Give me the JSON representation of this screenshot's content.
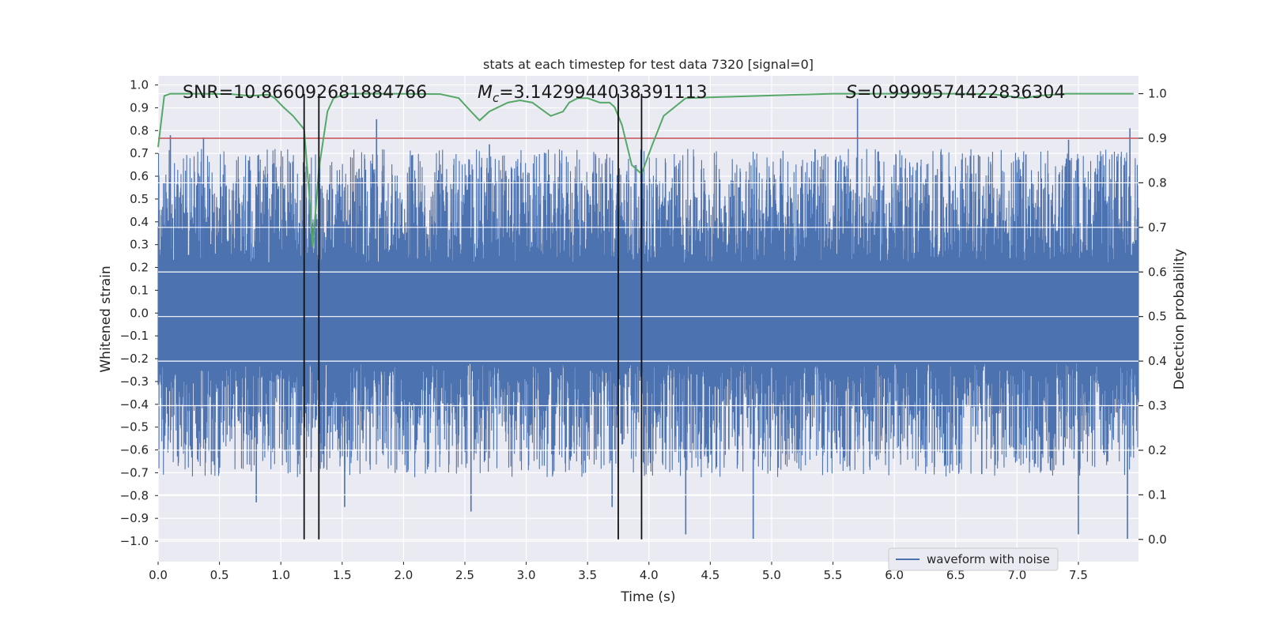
{
  "chart_data": {
    "type": "line",
    "title": "stats at each timestep for test data 7320 [signal=0]",
    "xlabel": "Time (s)",
    "ylabel": "Whitened strain",
    "y2label": "Detection probability",
    "xlim": [
      0.0,
      7.99
    ],
    "ylim": [
      -1.09,
      1.04
    ],
    "y2lim": [
      -0.05,
      1.04
    ],
    "xticks": [
      "0.0",
      "0.5",
      "1.0",
      "1.5",
      "2.0",
      "2.5",
      "3.0",
      "3.5",
      "4.0",
      "4.5",
      "5.0",
      "5.5",
      "6.0",
      "6.5",
      "7.0",
      "7.5"
    ],
    "yticks": [
      "1.0",
      "0.9",
      "0.8",
      "0.7",
      "0.6",
      "0.5",
      "0.4",
      "0.3",
      "0.2",
      "0.1",
      "0.0",
      "−0.1",
      "−0.2",
      "−0.3",
      "−0.4",
      "−0.5",
      "−0.6",
      "−0.7",
      "−0.8",
      "−0.9",
      "−1.0"
    ],
    "y2ticks": [
      "1.0",
      "0.9",
      "0.8",
      "0.7",
      "0.6",
      "0.5",
      "0.4",
      "0.3",
      "0.2",
      "0.1",
      "0.0"
    ],
    "annotations": {
      "snr": "SNR=10.866092681884766",
      "mc_symbol": "M",
      "mc_sub": "c",
      "mc_value": "=3.1429944038391113",
      "s_symbol": "S",
      "s_value": "=0.9999574422836304"
    },
    "legend": {
      "label": "waveform with noise",
      "position": "lower-right"
    },
    "threshold": {
      "value": 0.9,
      "axis": "detection probability",
      "color": "#c44e52"
    },
    "vertical_lines": [
      1.19,
      1.31,
      3.75,
      3.94
    ],
    "waveform": {
      "name": "waveform with noise",
      "color": "#4c72b0",
      "duration_s": 7.99,
      "typical_upper_envelope": 0.5,
      "typical_lower_envelope": -0.5,
      "peaks": [
        {
          "t": 0.1,
          "v": 0.78
        },
        {
          "t": 0.37,
          "v": 0.77
        },
        {
          "t": 1.78,
          "v": 0.85
        },
        {
          "t": 2.7,
          "v": 0.74
        },
        {
          "t": 5.7,
          "v": 0.94
        },
        {
          "t": 7.42,
          "v": 0.76
        },
        {
          "t": 7.92,
          "v": 0.81
        }
      ],
      "troughs": [
        {
          "t": 0.8,
          "v": -0.83
        },
        {
          "t": 1.52,
          "v": -0.85
        },
        {
          "t": 2.55,
          "v": -0.87
        },
        {
          "t": 3.7,
          "v": -0.85
        },
        {
          "t": 4.3,
          "v": -0.97
        },
        {
          "t": 4.85,
          "v": -0.99
        },
        {
          "t": 7.5,
          "v": -0.97
        },
        {
          "t": 7.9,
          "v": -0.99
        }
      ]
    },
    "series": [
      {
        "name": "detection probability",
        "color": "#55a868",
        "axis": "right",
        "x": [
          0.0,
          0.05,
          0.1,
          0.3,
          0.6,
          0.75,
          0.9,
          0.95,
          1.02,
          1.1,
          1.19,
          1.23,
          1.26,
          1.31,
          1.38,
          1.43,
          1.55,
          1.9,
          2.3,
          2.45,
          2.55,
          2.62,
          2.7,
          2.85,
          2.95,
          3.05,
          3.15,
          3.2,
          3.3,
          3.35,
          3.42,
          3.5,
          3.6,
          3.68,
          3.72,
          3.78,
          3.86,
          3.94,
          4.02,
          4.12,
          4.3,
          5.5,
          6.5,
          6.8,
          7.05,
          7.2,
          7.4,
          7.95
        ],
        "y": [
          0.88,
          0.995,
          1.0,
          1.0,
          0.999,
          0.995,
          0.998,
          0.99,
          0.97,
          0.95,
          0.92,
          0.78,
          0.655,
          0.83,
          0.96,
          0.99,
          1.0,
          1.0,
          0.999,
          0.99,
          0.96,
          0.94,
          0.96,
          0.98,
          0.985,
          0.98,
          0.96,
          0.95,
          0.96,
          0.98,
          0.99,
          0.99,
          0.98,
          0.98,
          0.97,
          0.93,
          0.84,
          0.82,
          0.88,
          0.95,
          0.99,
          1.0,
          1.0,
          0.999,
          0.99,
          0.996,
          1.0,
          1.0
        ]
      }
    ]
  }
}
